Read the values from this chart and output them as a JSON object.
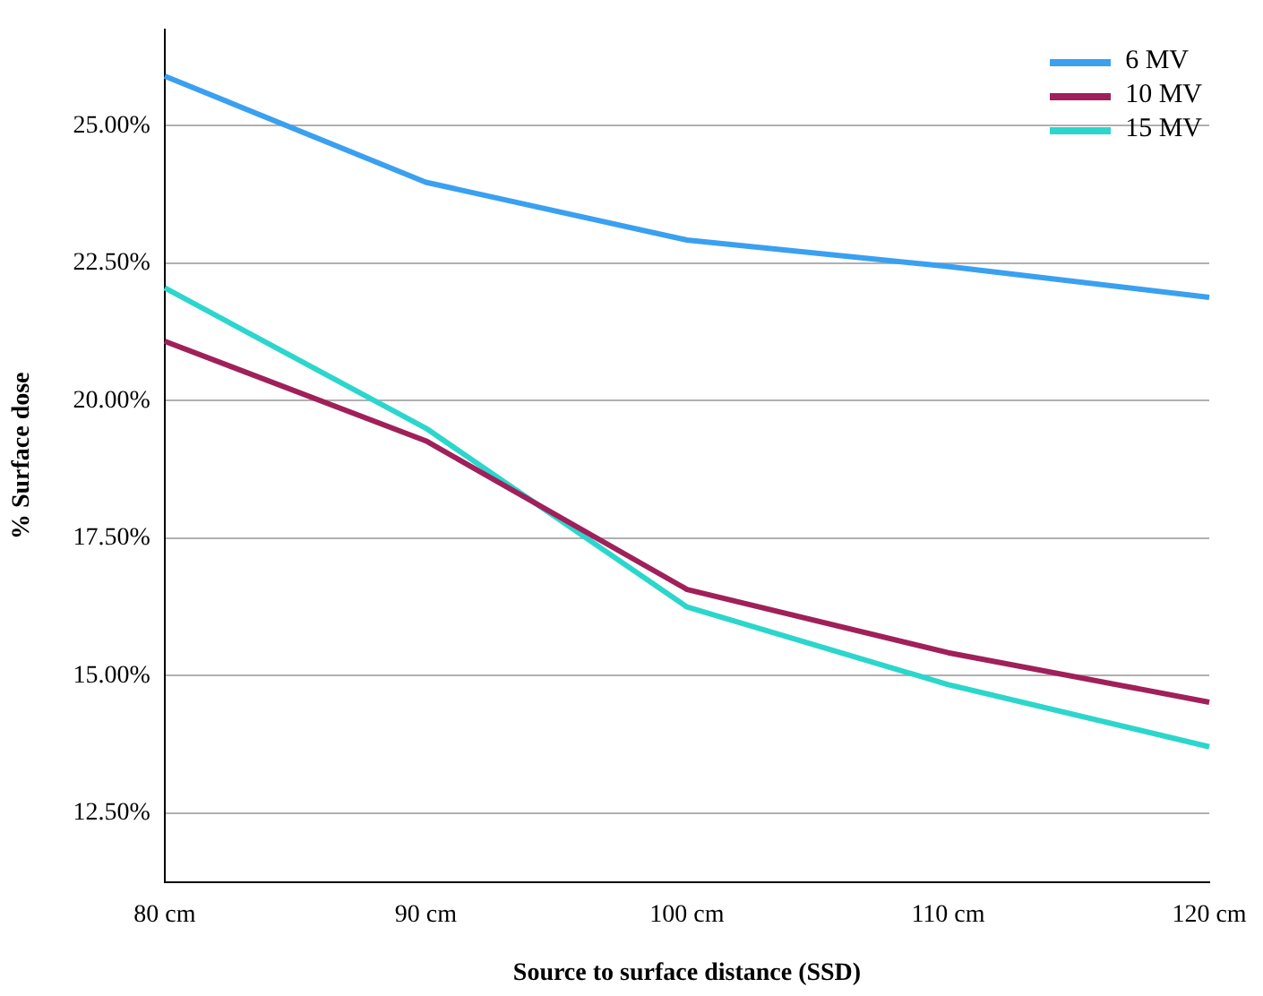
{
  "chart_data": {
    "type": "line",
    "xlabel": "Source to surface distance (SSD)",
    "ylabel": "% Surface dose",
    "categories": [
      "80 cm",
      "90 cm",
      "100 cm",
      "110 cm",
      "120 cm"
    ],
    "series": [
      {
        "name": "6 MV",
        "color": "#3aa0f0",
        "values": [
          25.9,
          23.97,
          22.92,
          22.44,
          21.88
        ]
      },
      {
        "name": "10 MV",
        "color": "#a0205a",
        "values": [
          21.08,
          19.27,
          16.57,
          15.42,
          14.52
        ]
      },
      {
        "name": "15 MV",
        "color": "#2cd6cc",
        "values": [
          22.05,
          19.5,
          16.25,
          14.84,
          13.71
        ]
      }
    ],
    "ylim": [
      11.25,
      26.75
    ],
    "yticks": [
      {
        "value": 12.5,
        "label": "12.50%"
      },
      {
        "value": 15,
        "label": "15.00%"
      },
      {
        "value": 17.5,
        "label": "17.50%"
      },
      {
        "value": 20,
        "label": "20.00%"
      },
      {
        "value": 22.5,
        "label": "22.50%"
      },
      {
        "value": 25,
        "label": "25.00%"
      }
    ],
    "grid": "y",
    "legend": "top right",
    "marker": "none",
    "line_style": "solid"
  }
}
